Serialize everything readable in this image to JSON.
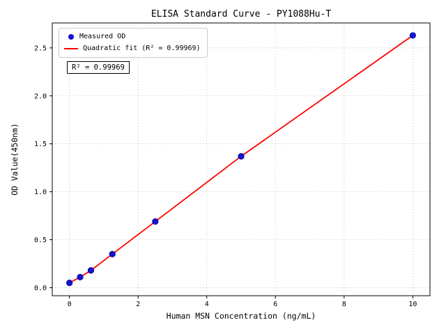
{
  "chart_data": {
    "type": "scatter",
    "title": "ELISA Standard Curve - PY1088Hu-T",
    "xlabel": "Human MSN Concentration (ng/mL)",
    "ylabel": "OD Value(450nm)",
    "x": [
      0,
      0.3125,
      0.625,
      1.25,
      2.5,
      5,
      10
    ],
    "y": [
      0.05,
      0.11,
      0.18,
      0.35,
      0.69,
      1.37,
      2.63
    ],
    "xlim": [
      -0.5,
      10.5
    ],
    "ylim": [
      -0.084,
      2.76
    ],
    "xticks": [
      0,
      2,
      4,
      6,
      8,
      10
    ],
    "xtick_labels": [
      "0",
      "2",
      "4",
      "6",
      "8",
      "10"
    ],
    "yticks": [
      0.0,
      0.5,
      1.0,
      1.5,
      2.0,
      2.5
    ],
    "ytick_labels": [
      "0.0",
      "0.5",
      "1.0",
      "1.5",
      "2.0",
      "2.5"
    ],
    "legend": [
      {
        "label": "Measured OD",
        "marker": "dot",
        "color": "#1414d2"
      },
      {
        "label": "Quadratic fit (R² = 0.99969)",
        "marker": "line",
        "color": "#ff0000"
      }
    ],
    "annotation": "R² = 0.99969",
    "r_squared": "0.99969",
    "colors": {
      "point": "#1414d2",
      "point_edge": "#000090",
      "fit_line": "#ff0000",
      "grid": "#b5b5b5",
      "axis": "#000000"
    },
    "grid": true,
    "legend_position": "upper left"
  }
}
